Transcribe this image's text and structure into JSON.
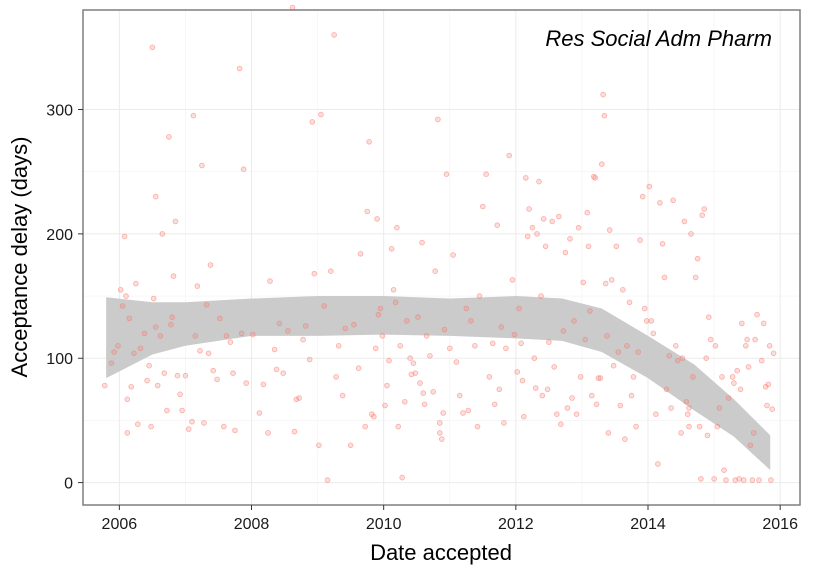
{
  "chart_data": {
    "type": "scatter",
    "annotation": "Res Social Adm Pharm",
    "xlabel": "Date accepted",
    "ylabel": "Acceptance delay (days)",
    "xlim": [
      2005.45,
      2016.3
    ],
    "ylim": [
      -18,
      380
    ],
    "x_ticks": [
      2006,
      2008,
      2010,
      2012,
      2014,
      2016
    ],
    "x_tick_labels": [
      "2006",
      "2008",
      "2010",
      "2012",
      "2014",
      "2016"
    ],
    "y_ticks": [
      0,
      100,
      200,
      300
    ],
    "y_tick_labels": [
      "0",
      "100",
      "200",
      "300"
    ],
    "grid": true,
    "colors": {
      "points": "#f8766d",
      "band": "#c8c8c8",
      "panel_border": "#7f7f7f",
      "grid": "#ebebeb"
    },
    "smooth_band": {
      "x": [
        2005.8,
        2006.5,
        2007.0,
        2008.0,
        2009.0,
        2010.0,
        2011.0,
        2012.0,
        2012.7,
        2013.3,
        2014.0,
        2014.7,
        2015.3,
        2015.85
      ],
      "upper": [
        149,
        145,
        145,
        148,
        150,
        150,
        148,
        150,
        148,
        140,
        118,
        95,
        67,
        38
      ],
      "lower": [
        84,
        103,
        110,
        118,
        118,
        119,
        118,
        116,
        114,
        105,
        84,
        58,
        37,
        10
      ]
    },
    "points": [
      [
        2005.78,
        78
      ],
      [
        2005.88,
        96
      ],
      [
        2005.92,
        105
      ],
      [
        2005.98,
        110
      ],
      [
        2006.02,
        155
      ],
      [
        2006.05,
        142
      ],
      [
        2006.08,
        198
      ],
      [
        2006.1,
        150
      ],
      [
        2006.12,
        67
      ],
      [
        2006.12,
        40
      ],
      [
        2006.15,
        132
      ],
      [
        2006.18,
        77
      ],
      [
        2006.22,
        104
      ],
      [
        2006.25,
        160
      ],
      [
        2006.28,
        47
      ],
      [
        2006.32,
        108
      ],
      [
        2006.38,
        120
      ],
      [
        2006.42,
        82
      ],
      [
        2006.45,
        94
      ],
      [
        2006.48,
        45
      ],
      [
        2006.5,
        350
      ],
      [
        2006.52,
        148
      ],
      [
        2006.55,
        230
      ],
      [
        2006.55,
        125
      ],
      [
        2006.58,
        78
      ],
      [
        2006.62,
        118
      ],
      [
        2006.65,
        200
      ],
      [
        2006.68,
        88
      ],
      [
        2006.72,
        58
      ],
      [
        2006.75,
        278
      ],
      [
        2006.78,
        127
      ],
      [
        2006.8,
        133
      ],
      [
        2006.82,
        166
      ],
      [
        2006.85,
        210
      ],
      [
        2006.88,
        86
      ],
      [
        2006.92,
        71
      ],
      [
        2006.95,
        58
      ],
      [
        2007.0,
        86
      ],
      [
        2007.05,
        43
      ],
      [
        2007.1,
        49
      ],
      [
        2007.12,
        295
      ],
      [
        2007.15,
        118
      ],
      [
        2007.18,
        158
      ],
      [
        2007.22,
        106
      ],
      [
        2007.25,
        255
      ],
      [
        2007.28,
        48
      ],
      [
        2007.32,
        143
      ],
      [
        2007.35,
        104
      ],
      [
        2007.38,
        175
      ],
      [
        2007.42,
        90
      ],
      [
        2007.48,
        83
      ],
      [
        2007.52,
        132
      ],
      [
        2007.58,
        45
      ],
      [
        2007.62,
        118
      ],
      [
        2007.68,
        113
      ],
      [
        2007.72,
        88
      ],
      [
        2007.75,
        42
      ],
      [
        2007.82,
        333
      ],
      [
        2007.85,
        120
      ],
      [
        2007.88,
        252
      ],
      [
        2007.92,
        80
      ],
      [
        2008.02,
        119
      ],
      [
        2008.12,
        56
      ],
      [
        2008.18,
        79
      ],
      [
        2008.25,
        40
      ],
      [
        2008.28,
        162
      ],
      [
        2008.35,
        107
      ],
      [
        2008.38,
        91
      ],
      [
        2008.42,
        128
      ],
      [
        2008.48,
        88
      ],
      [
        2008.55,
        122
      ],
      [
        2008.62,
        382
      ],
      [
        2008.65,
        41
      ],
      [
        2008.68,
        67
      ],
      [
        2008.72,
        68
      ],
      [
        2008.78,
        115
      ],
      [
        2008.82,
        126
      ],
      [
        2008.88,
        99
      ],
      [
        2008.92,
        290
      ],
      [
        2008.95,
        168
      ],
      [
        2009.02,
        30
      ],
      [
        2009.05,
        296
      ],
      [
        2009.1,
        142
      ],
      [
        2009.15,
        2
      ],
      [
        2009.2,
        170
      ],
      [
        2009.25,
        360
      ],
      [
        2009.28,
        85
      ],
      [
        2009.32,
        110
      ],
      [
        2009.38,
        70
      ],
      [
        2009.42,
        124
      ],
      [
        2009.5,
        30
      ],
      [
        2009.55,
        127
      ],
      [
        2009.62,
        92
      ],
      [
        2009.65,
        184
      ],
      [
        2009.72,
        45
      ],
      [
        2009.75,
        218
      ],
      [
        2009.78,
        274
      ],
      [
        2009.82,
        55
      ],
      [
        2009.85,
        53
      ],
      [
        2009.88,
        108
      ],
      [
        2009.9,
        212
      ],
      [
        2009.92,
        135
      ],
      [
        2009.95,
        140
      ],
      [
        2009.98,
        118
      ],
      [
        2010.02,
        62
      ],
      [
        2010.05,
        78
      ],
      [
        2010.08,
        98
      ],
      [
        2010.12,
        188
      ],
      [
        2010.15,
        155
      ],
      [
        2010.18,
        145
      ],
      [
        2010.2,
        205
      ],
      [
        2010.22,
        45
      ],
      [
        2010.25,
        110
      ],
      [
        2010.28,
        4
      ],
      [
        2010.32,
        65
      ],
      [
        2010.35,
        130
      ],
      [
        2010.4,
        100
      ],
      [
        2010.42,
        87
      ],
      [
        2010.45,
        96
      ],
      [
        2010.48,
        88
      ],
      [
        2010.52,
        133
      ],
      [
        2010.55,
        80
      ],
      [
        2010.58,
        193
      ],
      [
        2010.6,
        72
      ],
      [
        2010.62,
        63
      ],
      [
        2010.65,
        118
      ],
      [
        2010.7,
        102
      ],
      [
        2010.75,
        73
      ],
      [
        2010.78,
        170
      ],
      [
        2010.82,
        292
      ],
      [
        2010.85,
        40
      ],
      [
        2010.85,
        48
      ],
      [
        2010.88,
        35
      ],
      [
        2010.9,
        56
      ],
      [
        2010.92,
        123
      ],
      [
        2010.95,
        248
      ],
      [
        2011.0,
        108
      ],
      [
        2011.05,
        183
      ],
      [
        2011.1,
        97
      ],
      [
        2011.15,
        70
      ],
      [
        2011.2,
        56
      ],
      [
        2011.25,
        140
      ],
      [
        2011.28,
        58
      ],
      [
        2011.32,
        130
      ],
      [
        2011.38,
        110
      ],
      [
        2011.42,
        45
      ],
      [
        2011.45,
        150
      ],
      [
        2011.5,
        222
      ],
      [
        2011.55,
        248
      ],
      [
        2011.6,
        85
      ],
      [
        2011.65,
        112
      ],
      [
        2011.68,
        63
      ],
      [
        2011.72,
        207
      ],
      [
        2011.75,
        75
      ],
      [
        2011.78,
        125
      ],
      [
        2011.82,
        48
      ],
      [
        2011.85,
        108
      ],
      [
        2011.9,
        263
      ],
      [
        2011.95,
        163
      ],
      [
        2011.98,
        119
      ],
      [
        2012.02,
        89
      ],
      [
        2012.05,
        140
      ],
      [
        2012.08,
        112
      ],
      [
        2012.1,
        82
      ],
      [
        2012.12,
        53
      ],
      [
        2012.15,
        245
      ],
      [
        2012.18,
        198
      ],
      [
        2012.2,
        220
      ],
      [
        2012.25,
        205
      ],
      [
        2012.28,
        100
      ],
      [
        2012.3,
        76
      ],
      [
        2012.32,
        200
      ],
      [
        2012.35,
        242
      ],
      [
        2012.38,
        150
      ],
      [
        2012.4,
        70
      ],
      [
        2012.42,
        212
      ],
      [
        2012.45,
        190
      ],
      [
        2012.48,
        75
      ],
      [
        2012.5,
        113
      ],
      [
        2012.55,
        210
      ],
      [
        2012.58,
        93
      ],
      [
        2012.62,
        55
      ],
      [
        2012.65,
        214
      ],
      [
        2012.68,
        47
      ],
      [
        2012.72,
        122
      ],
      [
        2012.75,
        185
      ],
      [
        2012.78,
        60
      ],
      [
        2012.82,
        196
      ],
      [
        2012.85,
        68
      ],
      [
        2012.88,
        130
      ],
      [
        2012.92,
        55
      ],
      [
        2012.95,
        205
      ],
      [
        2012.98,
        85
      ],
      [
        2013.02,
        161
      ],
      [
        2013.05,
        115
      ],
      [
        2013.08,
        217
      ],
      [
        2013.1,
        190
      ],
      [
        2013.12,
        138
      ],
      [
        2013.15,
        70
      ],
      [
        2013.18,
        246
      ],
      [
        2013.2,
        245
      ],
      [
        2013.22,
        63
      ],
      [
        2013.25,
        84
      ],
      [
        2013.28,
        84
      ],
      [
        2013.3,
        256
      ],
      [
        2013.32,
        312
      ],
      [
        2013.34,
        295
      ],
      [
        2013.36,
        160
      ],
      [
        2013.38,
        118
      ],
      [
        2013.4,
        40
      ],
      [
        2013.42,
        203
      ],
      [
        2013.45,
        163
      ],
      [
        2013.48,
        94
      ],
      [
        2013.52,
        190
      ],
      [
        2013.55,
        105
      ],
      [
        2013.58,
        62
      ],
      [
        2013.62,
        155
      ],
      [
        2013.65,
        35
      ],
      [
        2013.68,
        110
      ],
      [
        2013.72,
        145
      ],
      [
        2013.75,
        70
      ],
      [
        2013.78,
        85
      ],
      [
        2013.82,
        45
      ],
      [
        2013.85,
        105
      ],
      [
        2013.88,
        195
      ],
      [
        2013.92,
        230
      ],
      [
        2013.95,
        140
      ],
      [
        2013.98,
        130
      ],
      [
        2014.02,
        238
      ],
      [
        2014.05,
        130
      ],
      [
        2014.08,
        120
      ],
      [
        2014.12,
        55
      ],
      [
        2014.15,
        15
      ],
      [
        2014.18,
        225
      ],
      [
        2014.22,
        192
      ],
      [
        2014.25,
        165
      ],
      [
        2014.28,
        75
      ],
      [
        2014.32,
        102
      ],
      [
        2014.35,
        60
      ],
      [
        2014.38,
        227
      ],
      [
        2014.42,
        110
      ],
      [
        2014.45,
        98
      ],
      [
        2014.5,
        40
      ],
      [
        2014.52,
        100
      ],
      [
        2014.55,
        210
      ],
      [
        2014.58,
        65
      ],
      [
        2014.6,
        55
      ],
      [
        2014.62,
        60
      ],
      [
        2014.62,
        45
      ],
      [
        2014.65,
        200
      ],
      [
        2014.68,
        85
      ],
      [
        2014.72,
        165
      ],
      [
        2014.75,
        180
      ],
      [
        2014.78,
        45
      ],
      [
        2014.8,
        3
      ],
      [
        2014.82,
        215
      ],
      [
        2014.85,
        220
      ],
      [
        2014.88,
        100
      ],
      [
        2014.9,
        38
      ],
      [
        2014.92,
        133
      ],
      [
        2014.95,
        115
      ],
      [
        2015.0,
        3
      ],
      [
        2015.02,
        110
      ],
      [
        2015.05,
        45
      ],
      [
        2015.08,
        60
      ],
      [
        2015.12,
        85
      ],
      [
        2015.15,
        10
      ],
      [
        2015.18,
        2
      ],
      [
        2015.22,
        68
      ],
      [
        2015.28,
        85
      ],
      [
        2015.3,
        80
      ],
      [
        2015.32,
        2
      ],
      [
        2015.35,
        90
      ],
      [
        2015.38,
        3
      ],
      [
        2015.4,
        75
      ],
      [
        2015.42,
        128
      ],
      [
        2015.45,
        2
      ],
      [
        2015.48,
        110
      ],
      [
        2015.5,
        115
      ],
      [
        2015.52,
        93
      ],
      [
        2015.55,
        30
      ],
      [
        2015.58,
        2
      ],
      [
        2015.6,
        40
      ],
      [
        2015.62,
        115
      ],
      [
        2015.65,
        135
      ],
      [
        2015.68,
        2
      ],
      [
        2015.72,
        98
      ],
      [
        2015.75,
        128
      ],
      [
        2015.78,
        77
      ],
      [
        2015.8,
        62
      ],
      [
        2015.82,
        79
      ],
      [
        2015.84,
        110
      ],
      [
        2015.86,
        2
      ],
      [
        2015.88,
        59
      ],
      [
        2015.9,
        104
      ]
    ]
  }
}
